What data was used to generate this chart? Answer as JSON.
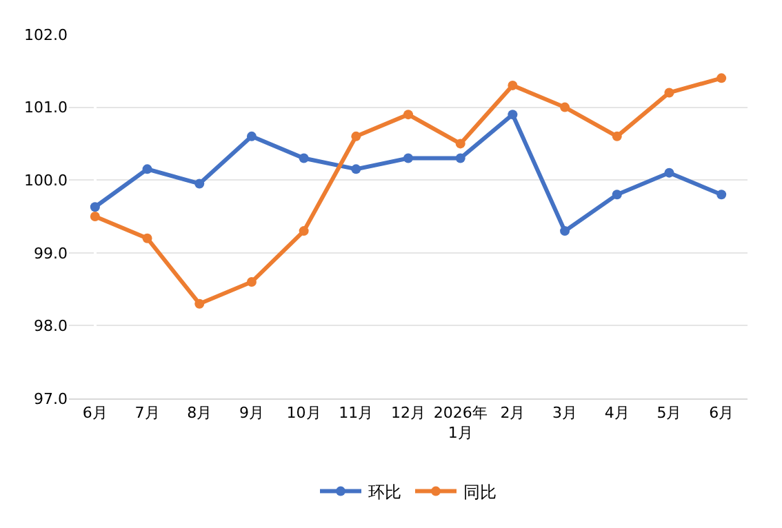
{
  "chart_data": {
    "type": "line",
    "categories": [
      "6月",
      "7月",
      "8月",
      "9月",
      "10月",
      "11月",
      "12月",
      "2026年\n1月",
      "2月",
      "3月",
      "4月",
      "5月",
      "6月"
    ],
    "series": [
      {
        "name": "环比",
        "color": "#4472c4",
        "values": [
          99.63,
          100.15,
          99.95,
          100.6,
          100.3,
          100.15,
          100.3,
          100.3,
          100.9,
          99.3,
          99.8,
          100.1,
          99.8
        ]
      },
      {
        "name": "同比",
        "color": "#ed7d31",
        "values": [
          99.5,
          99.2,
          98.3,
          98.6,
          99.3,
          100.6,
          100.9,
          100.5,
          101.3,
          101.0,
          100.6,
          101.2,
          101.4
        ]
      }
    ],
    "ylim": [
      97,
      102
    ],
    "yticks": [
      {
        "value": 97,
        "label": "97.0"
      },
      {
        "value": 98,
        "label": "98.0"
      },
      {
        "value": 99,
        "label": "99.0"
      },
      {
        "value": 100,
        "label": "100.0"
      },
      {
        "value": 101,
        "label": "101.0"
      },
      {
        "value": 102,
        "label": "102.0"
      }
    ],
    "grid": "y",
    "legend": "bottom",
    "marker": "circle",
    "line_style": "solid"
  }
}
